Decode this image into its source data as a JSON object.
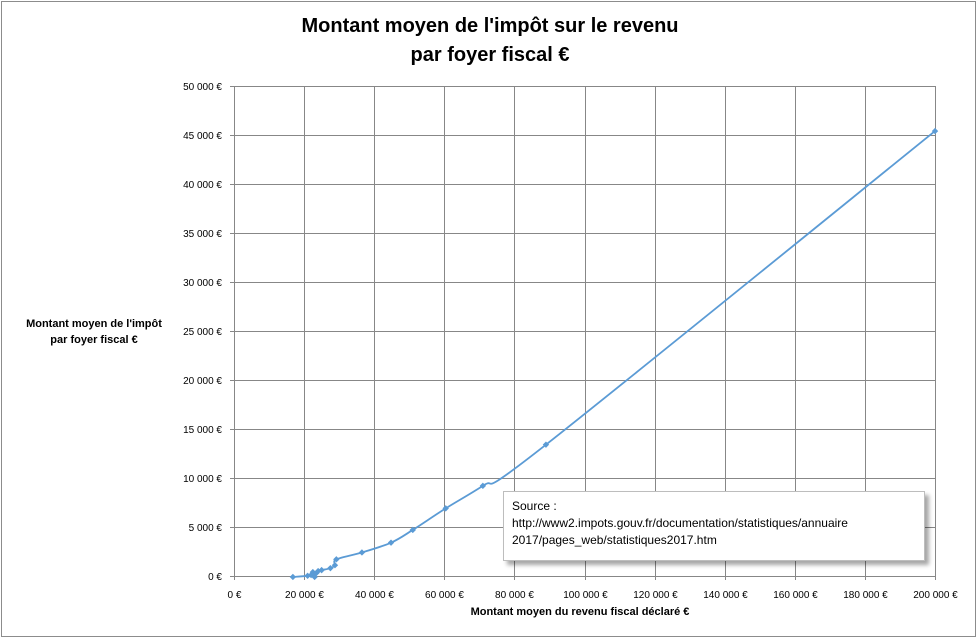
{
  "chart_data": {
    "type": "line",
    "title": [
      "Montant moyen de l'impôt sur le revenu",
      "par foyer fiscal €"
    ],
    "ylabel": [
      "Montant moyen de l'impôt",
      "par foyer  fiscal  €"
    ],
    "xlabel": "Montant moyen du revenu fiscal  déclaré €",
    "xlim": [
      0,
      200000
    ],
    "ylim": [
      0,
      50000
    ],
    "grid": true,
    "x_ticks": [
      0,
      20000,
      40000,
      60000,
      80000,
      100000,
      120000,
      140000,
      160000,
      180000,
      200000
    ],
    "x_tick_labels": [
      "0 €",
      "20 000 €",
      "40 000 €",
      "60 000 €",
      "80 000 €",
      "100 000 €",
      "120 000 €",
      "140 000 €",
      "160 000 €",
      "180 000 €",
      "200 000 €"
    ],
    "y_ticks": [
      0,
      5000,
      10000,
      15000,
      20000,
      25000,
      30000,
      35000,
      40000,
      45000,
      50000
    ],
    "y_tick_labels": [
      "0 €",
      "5 000 €",
      "10 000 €",
      "15 000 €",
      "20 000 €",
      "25 000 €",
      "30 000 €",
      "35 000 €",
      "40 000 €",
      "45 000 €",
      "50 000 €"
    ],
    "series": [
      {
        "color": "#5b9bd5",
        "points": [
          [
            16800,
            -100
          ],
          [
            21000,
            20
          ],
          [
            22000,
            100
          ],
          [
            22500,
            400
          ],
          [
            23000,
            -100
          ],
          [
            23500,
            300
          ],
          [
            24000,
            500
          ],
          [
            25000,
            600
          ],
          [
            27500,
            800
          ],
          [
            28800,
            1100
          ],
          [
            29200,
            1700
          ],
          [
            36500,
            2400
          ],
          [
            44800,
            3400
          ],
          [
            51000,
            4700
          ],
          [
            60400,
            6900
          ],
          [
            71000,
            9200
          ],
          [
            89000,
            13400
          ],
          [
            200000,
            45400
          ]
        ]
      }
    ]
  },
  "source": {
    "line1": "Source :",
    "line2": "http://www2.impots.gouv.fr/documentation/statistiques/annuaire",
    "line3": "2017/pages_web/statistiques2017.htm"
  }
}
